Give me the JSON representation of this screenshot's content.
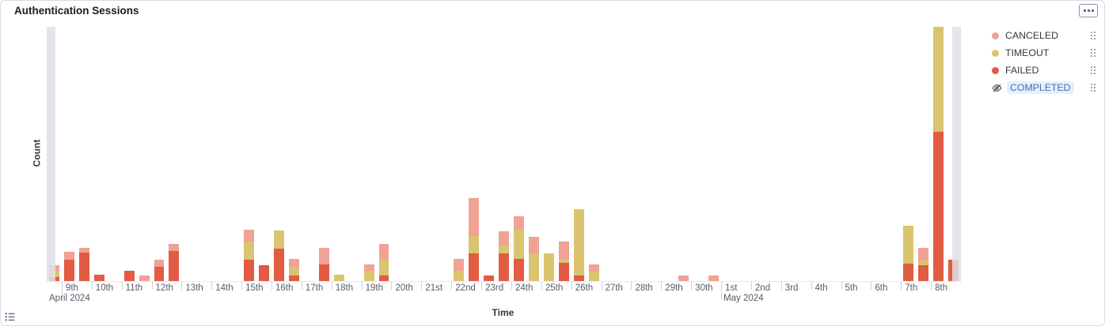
{
  "panel": {
    "title": "Authentication Sessions"
  },
  "legend": {
    "items": [
      {
        "label": "CANCELED",
        "color": "#F0A294",
        "hidden": false
      },
      {
        "label": "TIMEOUT",
        "color": "#DAC46F",
        "hidden": false
      },
      {
        "label": "FAILED",
        "color": "#E25B43",
        "hidden": false
      },
      {
        "label": "COMPLETED",
        "color": "#54B399",
        "hidden": true
      }
    ]
  },
  "chart_data": {
    "type": "bar",
    "stacked": true,
    "title": "Authentication Sessions",
    "xlabel": "Time",
    "ylabel": "Count",
    "ylim": [
      0,
      322
    ],
    "grid": false,
    "legend_position": "right",
    "bucket_hours": 12,
    "stack_order": [
      "FAILED",
      "TIMEOUT",
      "CANCELED"
    ],
    "series_colors": {
      "CANCELED": "#F0A294",
      "TIMEOUT": "#DAC46F",
      "FAILED": "#E25B43"
    },
    "partial_bucket_color": "#DFE0E6",
    "partial_buckets": [
      "left",
      "right"
    ],
    "x_axis": {
      "start": "2024-04-08T12:00:00",
      "end": "2024-05-09T00:00:00",
      "ticks": [
        {
          "date": "2024-04-09",
          "label": "9th",
          "month_label": "April 2024"
        },
        {
          "date": "2024-04-10",
          "label": "10th"
        },
        {
          "date": "2024-04-11",
          "label": "11th"
        },
        {
          "date": "2024-04-12",
          "label": "12th"
        },
        {
          "date": "2024-04-13",
          "label": "13th"
        },
        {
          "date": "2024-04-14",
          "label": "14th"
        },
        {
          "date": "2024-04-15",
          "label": "15th"
        },
        {
          "date": "2024-04-16",
          "label": "16th"
        },
        {
          "date": "2024-04-17",
          "label": "17th"
        },
        {
          "date": "2024-04-18",
          "label": "18th"
        },
        {
          "date": "2024-04-19",
          "label": "19th"
        },
        {
          "date": "2024-04-20",
          "label": "20th"
        },
        {
          "date": "2024-04-21",
          "label": "21st"
        },
        {
          "date": "2024-04-22",
          "label": "22nd"
        },
        {
          "date": "2024-04-23",
          "label": "23rd"
        },
        {
          "date": "2024-04-24",
          "label": "24th"
        },
        {
          "date": "2024-04-25",
          "label": "25th"
        },
        {
          "date": "2024-04-26",
          "label": "26th"
        },
        {
          "date": "2024-04-27",
          "label": "27th"
        },
        {
          "date": "2024-04-28",
          "label": "28th"
        },
        {
          "date": "2024-04-29",
          "label": "29th"
        },
        {
          "date": "2024-04-30",
          "label": "30th"
        },
        {
          "date": "2024-05-01",
          "label": "1st",
          "month_label": "May 2024"
        },
        {
          "date": "2024-05-02",
          "label": "2nd"
        },
        {
          "date": "2024-05-03",
          "label": "3rd"
        },
        {
          "date": "2024-05-04",
          "label": "4th"
        },
        {
          "date": "2024-05-05",
          "label": "5th"
        },
        {
          "date": "2024-05-06",
          "label": "6th"
        },
        {
          "date": "2024-05-07",
          "label": "7th"
        },
        {
          "date": "2024-05-08",
          "label": "8th"
        }
      ]
    },
    "bars": [
      {
        "start": "2024-04-08T12:00:00",
        "CANCELED": 8,
        "TIMEOUT": 7,
        "FAILED": 5
      },
      {
        "start": "2024-04-09T00:00:00",
        "CANCELED": 10,
        "TIMEOUT": 0,
        "FAILED": 27
      },
      {
        "start": "2024-04-09T12:00:00",
        "CANCELED": 6,
        "TIMEOUT": 0,
        "FAILED": 36
      },
      {
        "start": "2024-04-10T00:00:00",
        "CANCELED": 0,
        "TIMEOUT": 0,
        "FAILED": 8
      },
      {
        "start": "2024-04-11T00:00:00",
        "CANCELED": 0,
        "TIMEOUT": 0,
        "FAILED": 13
      },
      {
        "start": "2024-04-11T12:00:00",
        "CANCELED": 7,
        "TIMEOUT": 0,
        "FAILED": 0
      },
      {
        "start": "2024-04-12T00:00:00",
        "CANCELED": 9,
        "TIMEOUT": 0,
        "FAILED": 18
      },
      {
        "start": "2024-04-12T12:00:00",
        "CANCELED": 9,
        "TIMEOUT": 0,
        "FAILED": 38
      },
      {
        "start": "2024-04-15T00:00:00",
        "CANCELED": 15,
        "TIMEOUT": 23,
        "FAILED": 27
      },
      {
        "start": "2024-04-15T12:00:00",
        "CANCELED": 0,
        "TIMEOUT": 0,
        "FAILED": 20
      },
      {
        "start": "2024-04-16T00:00:00",
        "CANCELED": 0,
        "TIMEOUT": 23,
        "FAILED": 41
      },
      {
        "start": "2024-04-16T12:00:00",
        "CANCELED": 10,
        "TIMEOUT": 11,
        "FAILED": 7
      },
      {
        "start": "2024-04-17T12:00:00",
        "CANCELED": 21,
        "TIMEOUT": 0,
        "FAILED": 21
      },
      {
        "start": "2024-04-18T00:00:00",
        "CANCELED": 0,
        "TIMEOUT": 8,
        "FAILED": 0
      },
      {
        "start": "2024-04-19T00:00:00",
        "CANCELED": 8,
        "TIMEOUT": 13,
        "FAILED": 0
      },
      {
        "start": "2024-04-19T12:00:00",
        "CANCELED": 20,
        "TIMEOUT": 20,
        "FAILED": 7
      },
      {
        "start": "2024-04-22T00:00:00",
        "CANCELED": 15,
        "TIMEOUT": 13,
        "FAILED": 0
      },
      {
        "start": "2024-04-22T12:00:00",
        "CANCELED": 48,
        "TIMEOUT": 22,
        "FAILED": 35
      },
      {
        "start": "2024-04-23T00:00:00",
        "CANCELED": 0,
        "TIMEOUT": 0,
        "FAILED": 7
      },
      {
        "start": "2024-04-23T12:00:00",
        "CANCELED": 18,
        "TIMEOUT": 10,
        "FAILED": 35
      },
      {
        "start": "2024-04-24T00:00:00",
        "CANCELED": 17,
        "TIMEOUT": 37,
        "FAILED": 28
      },
      {
        "start": "2024-04-24T12:00:00",
        "CANCELED": 21,
        "TIMEOUT": 35,
        "FAILED": 0
      },
      {
        "start": "2024-04-25T00:00:00",
        "CANCELED": 0,
        "TIMEOUT": 35,
        "FAILED": 0
      },
      {
        "start": "2024-04-25T12:00:00",
        "CANCELED": 22,
        "TIMEOUT": 5,
        "FAILED": 23
      },
      {
        "start": "2024-04-26T00:00:00",
        "CANCELED": 0,
        "TIMEOUT": 84,
        "FAILED": 7
      },
      {
        "start": "2024-04-26T12:00:00",
        "CANCELED": 9,
        "TIMEOUT": 12,
        "FAILED": 0
      },
      {
        "start": "2024-04-29T12:00:00",
        "CANCELED": 7,
        "TIMEOUT": 0,
        "FAILED": 0
      },
      {
        "start": "2024-04-30T12:00:00",
        "CANCELED": 7,
        "TIMEOUT": 0,
        "FAILED": 0
      },
      {
        "start": "2024-05-07T00:00:00",
        "CANCELED": 0,
        "TIMEOUT": 48,
        "FAILED": 22
      },
      {
        "start": "2024-05-07T12:00:00",
        "CANCELED": 16,
        "TIMEOUT": 6,
        "FAILED": 20
      },
      {
        "start": "2024-05-08T00:00:00",
        "CANCELED": 0,
        "TIMEOUT": 133,
        "FAILED": 189
      },
      {
        "start": "2024-05-08T12:00:00",
        "CANCELED": 0,
        "TIMEOUT": 0,
        "FAILED": 27
      }
    ]
  },
  "icons": {
    "panel_options": "boxes-horizontal",
    "legend_toggle": "list",
    "hidden_series": "eye-closed",
    "legend_actions": "grip-dots"
  }
}
